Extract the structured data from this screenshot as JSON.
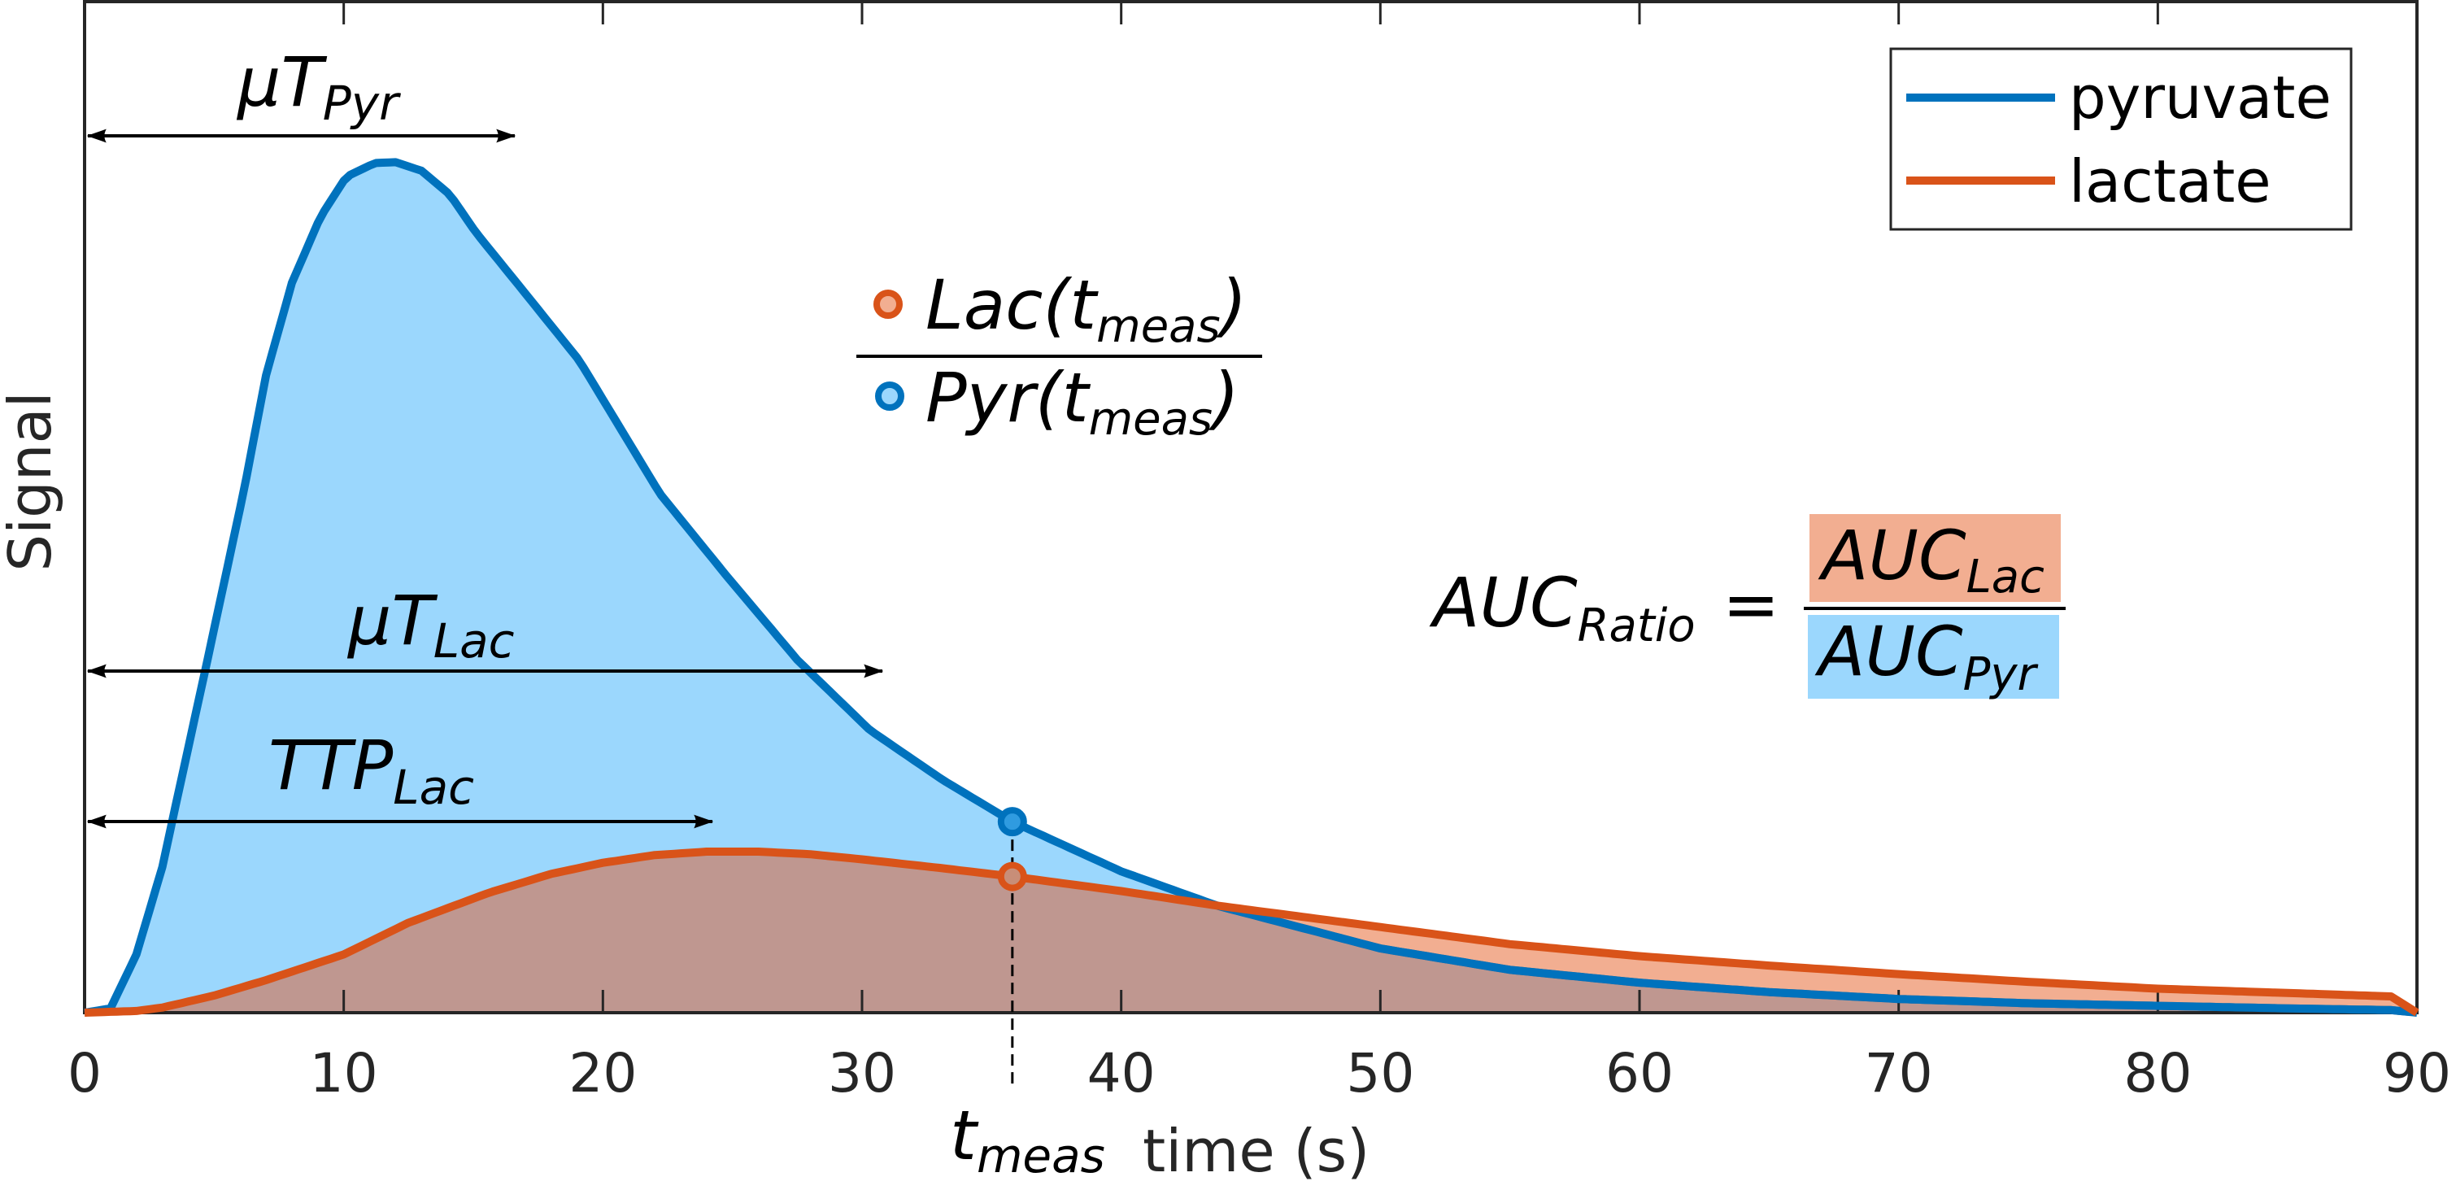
{
  "chart_data": {
    "type": "area",
    "title": "",
    "xlabel": "time (s)",
    "ylabel": "Signal",
    "xlim": [
      0,
      90
    ],
    "ylim": [
      0,
      1.05
    ],
    "x_ticks": [
      "0",
      "10",
      "20",
      "30",
      "40",
      "50",
      "60",
      "70",
      "80",
      "90"
    ],
    "y_ticks": [],
    "grid": false,
    "legend_position": "top-right",
    "series": [
      {
        "name": "pyruvate",
        "color": "#0072BD",
        "fill": "#9BD7FD",
        "x": [
          0,
          1,
          2,
          3,
          3.5,
          4.7,
          6.15,
          7,
          8,
          9.1,
          10.1,
          11.2,
          12,
          13,
          14.1,
          15.1,
          17,
          19.1,
          22.2,
          24.8,
          27.5,
          30.3,
          33.1,
          35.8,
          40,
          43.7,
          50,
          55,
          60,
          65,
          70,
          75,
          80,
          85,
          89,
          90
        ],
        "values": [
          0,
          0.005,
          0.068,
          0.17,
          0.24,
          0.406,
          0.61,
          0.744,
          0.852,
          0.929,
          0.976,
          0.992,
          0.993,
          0.983,
          0.955,
          0.911,
          0.84,
          0.761,
          0.606,
          0.509,
          0.412,
          0.33,
          0.272,
          0.223,
          0.165,
          0.125,
          0.075,
          0.05,
          0.035,
          0.024,
          0.016,
          0.011,
          0.008,
          0.005,
          0.003,
          0
        ]
      },
      {
        "name": "lactate",
        "color": "#D95319",
        "fill": "#F2AE91",
        "x": [
          0,
          2,
          3,
          5,
          7,
          10,
          12.5,
          15.6,
          18,
          20,
          22,
          24,
          26,
          28,
          30,
          33,
          35.8,
          40,
          43.7,
          50,
          55,
          60,
          65,
          70,
          75,
          80,
          85,
          89,
          90
        ],
        "values": [
          0,
          0.002,
          0.006,
          0.02,
          0.038,
          0.068,
          0.105,
          0.14,
          0.162,
          0.175,
          0.184,
          0.188,
          0.188,
          0.185,
          0.179,
          0.169,
          0.159,
          0.142,
          0.125,
          0.1,
          0.08,
          0.066,
          0.055,
          0.045,
          0.036,
          0.028,
          0.023,
          0.019,
          0
        ]
      }
    ],
    "annotations": {
      "mu_t_pyr": {
        "label": "μT",
        "sub": "Pyr",
        "arrow_x": [
          0,
          18
        ]
      },
      "mu_t_lac": {
        "label": "μT",
        "sub": "Lac",
        "arrow_x": [
          0,
          31
        ]
      },
      "ttp_lac": {
        "label": "TTP",
        "sub": "Lac",
        "arrow_x": [
          0,
          24.3
        ]
      },
      "t_meas": {
        "label": "t",
        "sub": "meas",
        "x": 35.8,
        "pyr_value": 0.223,
        "lac_value": 0.159
      },
      "point_ratio": {
        "numerator": "Lac(t",
        "numerator_sub": "meas",
        "numerator_close": ")",
        "denominator": "Pyr(t",
        "denominator_sub": "meas",
        "denominator_close": ")"
      },
      "auc_ratio": {
        "lhs": "AUC",
        "lhs_sub": "Ratio",
        "equals": "=",
        "numerator": "AUC",
        "numerator_sub": "Lac",
        "denominator": "AUC",
        "denominator_sub": "Pyr"
      }
    }
  },
  "legend": {
    "items": [
      {
        "label": "pyruvate",
        "color": "#0072BD"
      },
      {
        "label": "lactate",
        "color": "#D95319"
      }
    ]
  },
  "colors": {
    "pyruvate_line": "#0072BD",
    "pyruvate_fill": "#9BD7FD",
    "lactate_line": "#D95319",
    "lactate_fill": "#F2AE91",
    "overlap_fill": "#BF9790",
    "axis": "#262626"
  }
}
